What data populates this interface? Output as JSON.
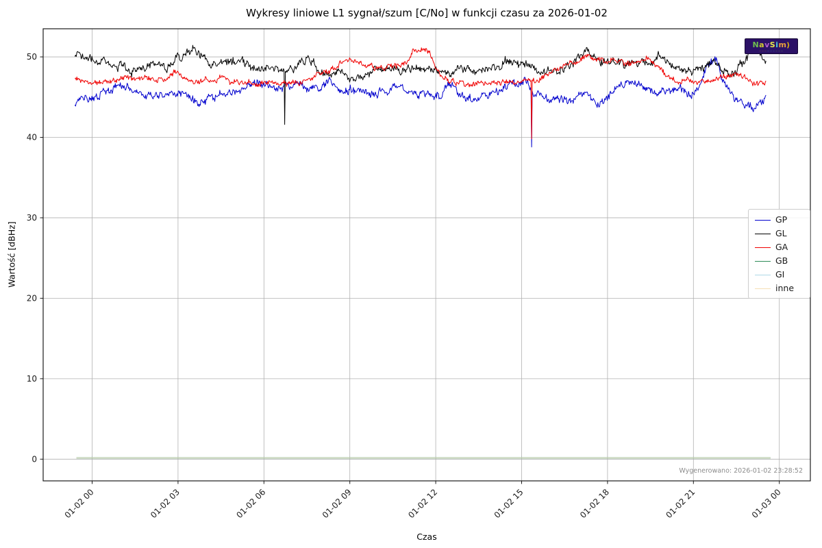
{
  "figure": {
    "background": "#ffffff",
    "plot_border_color": "#1a1a1a",
    "grid_color": "#b0b0b0"
  },
  "title": "Wykresy liniowe L1 sygnał/szum [C/No] w funkcji czasu za 2026-01-02",
  "footer_note": "Wygenerowano: 2026-01-02 23:28:52",
  "watermark": {
    "text": "NavSim",
    "background": "#2b1166",
    "arrow": "⟩",
    "arrow_color": "#ffd400",
    "letters": [
      {
        "ch": "N",
        "color": "#6fbf4f"
      },
      {
        "ch": "a",
        "color": "#cfc832"
      },
      {
        "ch": "v",
        "color": "#b05fd0"
      },
      {
        "ch": "S",
        "color": "#e8e84a"
      },
      {
        "ch": "i",
        "color": "#4fd0e0"
      },
      {
        "ch": "m",
        "color": "#e89f3f"
      }
    ],
    "tagline_segments": [
      {
        "text": "———",
        "color": "#e87f2f"
      },
      {
        "text": "———",
        "color": "#4fc8e8"
      },
      {
        "text": "———",
        "color": "#7fd04f"
      }
    ]
  },
  "chart_data": {
    "type": "line",
    "title": "Wykresy liniowe L1 sygnał/szum [C/No] w funkcji czasu za 2026-01-02",
    "xlabel": "Czas",
    "ylabel": "Wartość [dBHz]",
    "x_unit": "hours since 2026-01-02 00:00",
    "xlim": [
      -1.71,
      25.08
    ],
    "ylim": [
      -2.7,
      53.5
    ],
    "grid": true,
    "legend_position": "center right",
    "yticks": [
      0,
      10,
      20,
      30,
      40,
      50
    ],
    "xticks": [
      {
        "h": 0,
        "label": "01-02 00"
      },
      {
        "h": 3,
        "label": "01-02 03"
      },
      {
        "h": 6,
        "label": "01-02 06"
      },
      {
        "h": 9,
        "label": "01-02 09"
      },
      {
        "h": 12,
        "label": "01-02 12"
      },
      {
        "h": 15,
        "label": "01-02 15"
      },
      {
        "h": 18,
        "label": "01-02 18"
      },
      {
        "h": 21,
        "label": "01-02 21"
      },
      {
        "h": 24,
        "label": "01-03 00"
      }
    ],
    "series": [
      {
        "name": "GP",
        "color": "#0000cd",
        "width": 1,
        "noise": 0.5,
        "jitter": 0.28,
        "seed": 11,
        "spikes": [
          {
            "h": 15.35,
            "v": 38.8
          }
        ],
        "anchors": [
          [
            -0.6,
            44.4
          ],
          [
            -0.3,
            44.8
          ],
          [
            0,
            45.1
          ],
          [
            0.4,
            45.6
          ],
          [
            0.8,
            46.2
          ],
          [
            1.1,
            46.4
          ],
          [
            1.5,
            45.7
          ],
          [
            1.9,
            45.0
          ],
          [
            2.3,
            45.3
          ],
          [
            2.7,
            45.6
          ],
          [
            3.1,
            45.5
          ],
          [
            3.4,
            44.7
          ],
          [
            3.8,
            44.5
          ],
          [
            4.2,
            45.2
          ],
          [
            4.6,
            45.4
          ],
          [
            5,
            45.7
          ],
          [
            5.4,
            46.2
          ],
          [
            5.8,
            46.5
          ],
          [
            6.2,
            46.4
          ],
          [
            6.5,
            46.0
          ],
          [
            6.8,
            46.5
          ],
          [
            7.2,
            46.8
          ],
          [
            7.6,
            46.2
          ],
          [
            8,
            45.9
          ],
          [
            8.3,
            47.2
          ],
          [
            8.6,
            45.9
          ],
          [
            9,
            46.0
          ],
          [
            9.4,
            45.6
          ],
          [
            9.8,
            45.4
          ],
          [
            10.2,
            45.7
          ],
          [
            10.6,
            46.4
          ],
          [
            11,
            45.9
          ],
          [
            11.4,
            45.4
          ],
          [
            11.8,
            45.5
          ],
          [
            12.2,
            45.3
          ],
          [
            12.6,
            46.4
          ],
          [
            13,
            45.0
          ],
          [
            13.4,
            44.8
          ],
          [
            13.8,
            45.2
          ],
          [
            14.2,
            45.8
          ],
          [
            14.6,
            46.5
          ],
          [
            15,
            46.9
          ],
          [
            15.2,
            46.8
          ],
          [
            15.5,
            45.2
          ],
          [
            16,
            44.4
          ],
          [
            16.4,
            44.7
          ],
          [
            16.8,
            45.0
          ],
          [
            17.2,
            45.3
          ],
          [
            17.5,
            44.2
          ],
          [
            18,
            45.1
          ],
          [
            18.5,
            46.5
          ],
          [
            18.9,
            46.9
          ],
          [
            19.3,
            46.2
          ],
          [
            19.7,
            45.6
          ],
          [
            20.1,
            45.9
          ],
          [
            20.5,
            45.9
          ],
          [
            20.9,
            45.2
          ],
          [
            21.2,
            46.2
          ],
          [
            21.5,
            49.2
          ],
          [
            21.8,
            49.4
          ],
          [
            22.1,
            46.6
          ],
          [
            22.5,
            44.9
          ],
          [
            22.9,
            44.0
          ],
          [
            23.1,
            43.6
          ],
          [
            23.3,
            43.8
          ],
          [
            23.55,
            44.9
          ]
        ]
      },
      {
        "name": "GL",
        "color": "#000000",
        "width": 1,
        "noise": 0.55,
        "jitter": 0.3,
        "seed": 23,
        "spikes": [
          {
            "h": 6.72,
            "v": 41.6
          }
        ],
        "anchors": [
          [
            -0.6,
            50.3
          ],
          [
            -0.3,
            50.0
          ],
          [
            0,
            49.6
          ],
          [
            0.3,
            49.2
          ],
          [
            0.6,
            48.9
          ],
          [
            1,
            49.0
          ],
          [
            1.3,
            48.4
          ],
          [
            1.7,
            48.3
          ],
          [
            2,
            49.1
          ],
          [
            2.3,
            49.4
          ],
          [
            2.6,
            48.4
          ],
          [
            3,
            50.3
          ],
          [
            3.3,
            50.2
          ],
          [
            3.6,
            50.9
          ],
          [
            3.9,
            50.1
          ],
          [
            4.2,
            48.8
          ],
          [
            4.5,
            49.0
          ],
          [
            4.8,
            49.4
          ],
          [
            5.1,
            49.5
          ],
          [
            5.4,
            49.2
          ],
          [
            5.7,
            48.8
          ],
          [
            6,
            48.7
          ],
          [
            6.3,
            49.0
          ],
          [
            6.6,
            48.3
          ],
          [
            6.9,
            48.2
          ],
          [
            7.2,
            49.0
          ],
          [
            7.5,
            49.7
          ],
          [
            7.8,
            48.9
          ],
          [
            8.1,
            47.6
          ],
          [
            8.4,
            47.3
          ],
          [
            8.7,
            47.9
          ],
          [
            9,
            47.5
          ],
          [
            9.3,
            47.3
          ],
          [
            9.7,
            48.2
          ],
          [
            10,
            48.6
          ],
          [
            10.4,
            48.9
          ],
          [
            10.8,
            48.3
          ],
          [
            11.2,
            48.7
          ],
          [
            11.6,
            48.6
          ],
          [
            12,
            48.1
          ],
          [
            12.4,
            48.3
          ],
          [
            12.8,
            48.6
          ],
          [
            13.2,
            48.3
          ],
          [
            13.6,
            48.5
          ],
          [
            14,
            48.9
          ],
          [
            14.4,
            49.1
          ],
          [
            14.8,
            49.4
          ],
          [
            15.1,
            48.8
          ],
          [
            15.5,
            48.6
          ],
          [
            16,
            48.3
          ],
          [
            16.4,
            48.6
          ],
          [
            16.8,
            49.3
          ],
          [
            17.2,
            50.4
          ],
          [
            17.5,
            50.0
          ],
          [
            17.9,
            49.4
          ],
          [
            18.3,
            49.2
          ],
          [
            18.7,
            49.3
          ],
          [
            19.1,
            49.1
          ],
          [
            19.5,
            48.8
          ],
          [
            19.8,
            50.1
          ],
          [
            20.1,
            49.0
          ],
          [
            20.5,
            48.1
          ],
          [
            20.9,
            48.2
          ],
          [
            21.3,
            48.8
          ],
          [
            21.7,
            49.4
          ],
          [
            22,
            48.4
          ],
          [
            22.3,
            47.7
          ],
          [
            22.7,
            48.9
          ],
          [
            23,
            50.8
          ],
          [
            23.2,
            50.9
          ],
          [
            23.4,
            49.8
          ],
          [
            23.55,
            49.0
          ]
        ]
      },
      {
        "name": "GA",
        "color": "#f00000",
        "width": 1,
        "noise": 0.35,
        "jitter": 0.22,
        "seed": 37,
        "spikes": [
          {
            "h": 15.35,
            "v": 39.8
          }
        ],
        "anchors": [
          [
            -0.6,
            47.1
          ],
          [
            0,
            46.9
          ],
          [
            0.5,
            46.9
          ],
          [
            1,
            47.2
          ],
          [
            1.5,
            47.3
          ],
          [
            2,
            47.1
          ],
          [
            2.5,
            47.3
          ],
          [
            2.9,
            48.2
          ],
          [
            3.2,
            47.6
          ],
          [
            3.6,
            46.9
          ],
          [
            4,
            47.0
          ],
          [
            4.4,
            47.3
          ],
          [
            4.8,
            47.0
          ],
          [
            5.2,
            46.8
          ],
          [
            5.6,
            46.9
          ],
          [
            6,
            46.8
          ],
          [
            6.4,
            46.7
          ],
          [
            6.8,
            46.7
          ],
          [
            7.2,
            46.9
          ],
          [
            7.6,
            47.3
          ],
          [
            8,
            48.0
          ],
          [
            8.4,
            48.3
          ],
          [
            8.8,
            49.6
          ],
          [
            9.1,
            49.9
          ],
          [
            9.4,
            49.0
          ],
          [
            9.8,
            48.6
          ],
          [
            10.2,
            48.5
          ],
          [
            10.6,
            48.8
          ],
          [
            11,
            49.2
          ],
          [
            11.2,
            50.7
          ],
          [
            11.5,
            50.8
          ],
          [
            11.8,
            50.5
          ],
          [
            11.95,
            49.0
          ],
          [
            12.2,
            47.4
          ],
          [
            12.6,
            46.9
          ],
          [
            13,
            46.6
          ],
          [
            13.4,
            46.8
          ],
          [
            13.8,
            46.7
          ],
          [
            14.2,
            46.9
          ],
          [
            14.6,
            46.8
          ],
          [
            15,
            46.9
          ],
          [
            15.3,
            46.8
          ],
          [
            15.7,
            47.2
          ],
          [
            16.1,
            48.3
          ],
          [
            16.5,
            48.9
          ],
          [
            16.9,
            49.4
          ],
          [
            17.2,
            50.1
          ],
          [
            17.5,
            50.0
          ],
          [
            17.9,
            49.6
          ],
          [
            18.3,
            49.4
          ],
          [
            18.7,
            49.2
          ],
          [
            19.1,
            49.4
          ],
          [
            19.4,
            49.8
          ],
          [
            19.8,
            48.7
          ],
          [
            20.1,
            47.6
          ],
          [
            20.5,
            47.1
          ],
          [
            20.9,
            47.0
          ],
          [
            21.3,
            46.8
          ],
          [
            21.7,
            47.3
          ],
          [
            22.1,
            47.4
          ],
          [
            22.5,
            47.7
          ],
          [
            22.8,
            47.6
          ],
          [
            23.1,
            46.7
          ],
          [
            23.55,
            46.8
          ]
        ]
      },
      {
        "name": "GB",
        "color": "#2e8b57",
        "width": 1.4,
        "noise": 0,
        "jitter": 0,
        "seed": 41,
        "spikes": [],
        "anchors": [
          [
            -0.55,
            0.15
          ],
          [
            23.7,
            0.15
          ]
        ]
      },
      {
        "name": "GI",
        "color": "#add8e6",
        "width": 1.1,
        "noise": 0,
        "jitter": 0,
        "seed": 43,
        "spikes": [],
        "anchors": [
          [
            -0.55,
            0.15
          ],
          [
            23.7,
            0.15
          ]
        ]
      },
      {
        "name": "inne",
        "color": "#f5deb3",
        "width": 0.8,
        "noise": 0,
        "jitter": 0,
        "seed": 47,
        "spikes": [],
        "anchors": [
          [
            -0.55,
            0.15
          ],
          [
            23.7,
            0.15
          ]
        ]
      }
    ]
  }
}
